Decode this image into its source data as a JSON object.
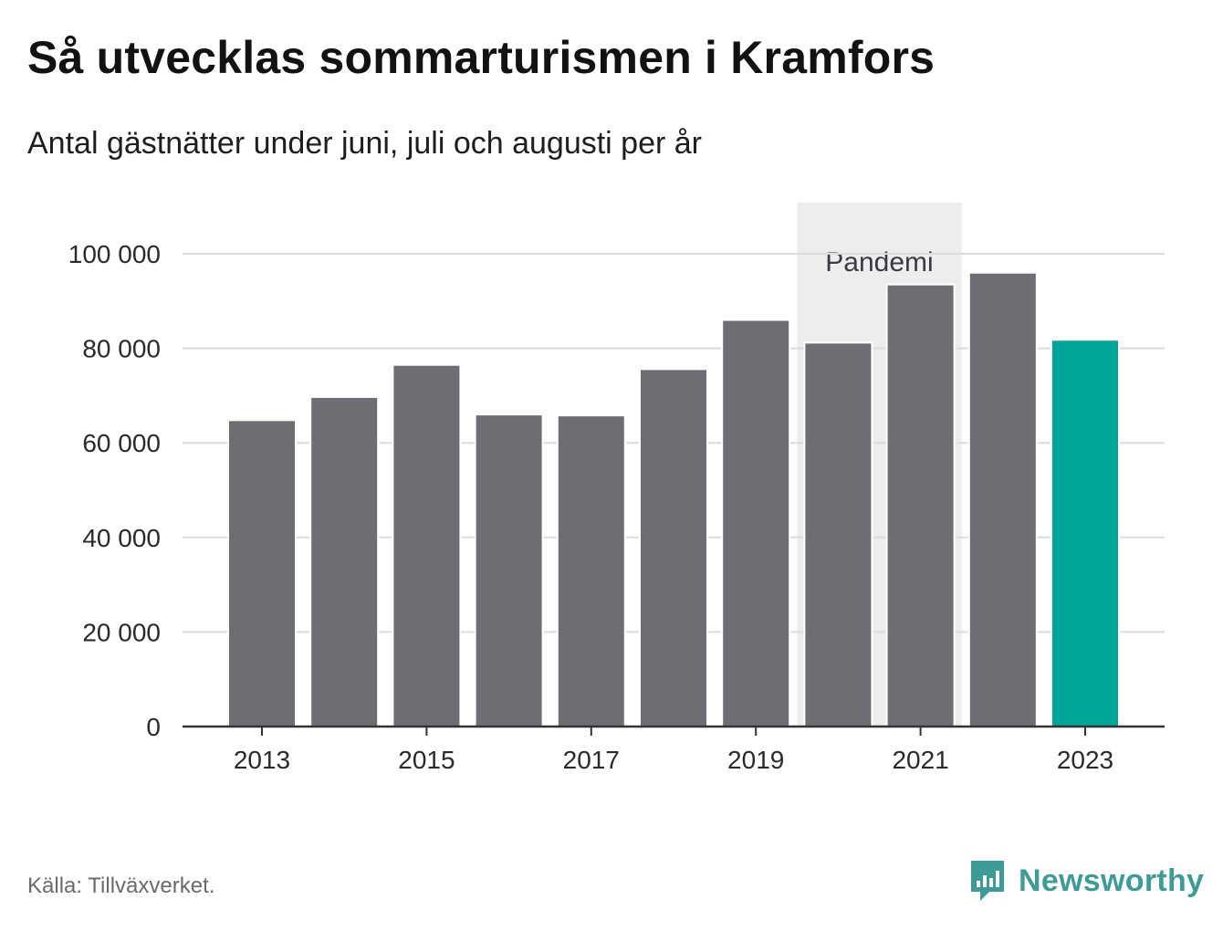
{
  "title": "Så utvecklas sommarturismen i Kramfors",
  "subtitle": "Antal gästnätter under juni, juli och augusti per år",
  "source": "Källa: Tillväxverket.",
  "brand": {
    "name": "Newsworthy",
    "icon": "newsworthy-logo-icon"
  },
  "colors": {
    "bar": "#6e6d74",
    "highlight": "#00a59a",
    "pandemic_band": "#ededed",
    "grid": "#dcdcdc",
    "axis": "#333333",
    "brand": "#3f9b95"
  },
  "chart_data": {
    "type": "bar",
    "categories": [
      "2013",
      "2014",
      "2015",
      "2016",
      "2017",
      "2018",
      "2019",
      "2020",
      "2021",
      "2022",
      "2023"
    ],
    "values": [
      64800,
      69700,
      76500,
      66000,
      65800,
      75600,
      86000,
      81200,
      93500,
      96000,
      81800
    ],
    "highlight_category": "2023",
    "x_tick_labels": [
      "2013",
      "2015",
      "2017",
      "2019",
      "2021",
      "2023"
    ],
    "y_ticks": [
      0,
      20000,
      40000,
      60000,
      80000,
      100000
    ],
    "y_tick_labels": [
      "0",
      "20 000",
      "40 000",
      "60 000",
      "80 000",
      "100 000"
    ],
    "ylim": [
      0,
      110000
    ],
    "grid": true,
    "annotation": {
      "label": "Pandemi",
      "from": "2020",
      "to": "2021"
    }
  }
}
